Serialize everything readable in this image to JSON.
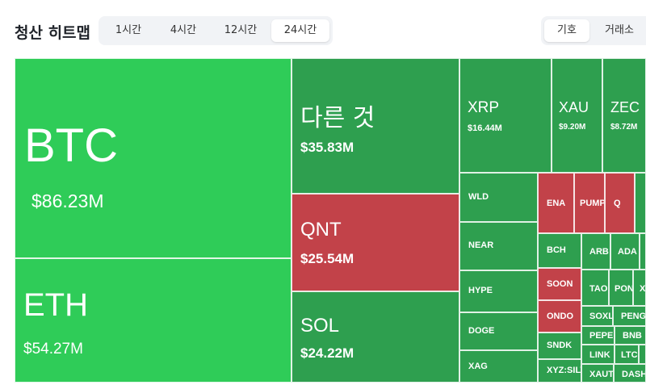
{
  "header": {
    "title": "청산 히트맵",
    "time_tabs": [
      "1시간",
      "4시간",
      "12시간",
      "24시간"
    ],
    "active_time_tab": "24시간",
    "view_tabs": [
      "기호",
      "거래소"
    ],
    "active_view_tab": "기호"
  },
  "colors": {
    "up_bright": "#2fcc58",
    "up": "#2e9f4f",
    "down": "#c24249"
  },
  "tiles": [
    {
      "symbol": "BTC",
      "value": "$86.23M",
      "color": "up_bright"
    },
    {
      "symbol": "ETH",
      "value": "$54.27M",
      "color": "up_bright"
    },
    {
      "symbol": "다른 것",
      "value": "$35.83M",
      "color": "up"
    },
    {
      "symbol": "QNT",
      "value": "$25.54M",
      "color": "down"
    },
    {
      "symbol": "SOL",
      "value": "$24.22M",
      "color": "up"
    },
    {
      "symbol": "XRP",
      "value": "$16.44M",
      "color": "up"
    },
    {
      "symbol": "XAU",
      "value": "$9.20M",
      "color": "up"
    },
    {
      "symbol": "ZEC",
      "value": "$8.72M",
      "color": "up"
    },
    {
      "symbol": "WLD",
      "color": "up"
    },
    {
      "symbol": "NEAR",
      "color": "up"
    },
    {
      "symbol": "HYPE",
      "color": "up"
    },
    {
      "symbol": "DOGE",
      "color": "up"
    },
    {
      "symbol": "XAG",
      "color": "up"
    },
    {
      "symbol": "ENA",
      "color": "down"
    },
    {
      "symbol": "PUMP",
      "color": "down"
    },
    {
      "symbol": "Q",
      "color": "down"
    },
    {
      "symbol": "BCH",
      "color": "up"
    },
    {
      "symbol": "SOON",
      "color": "down"
    },
    {
      "symbol": "ONDO",
      "color": "down"
    },
    {
      "symbol": "SNDK",
      "color": "up"
    },
    {
      "symbol": "XYZ:SILVER",
      "color": "up"
    },
    {
      "symbol": "ARB",
      "color": "up"
    },
    {
      "symbol": "ADA",
      "color": "up"
    },
    {
      "symbol": "TAO",
      "color": "up"
    },
    {
      "symbol": "PONKE",
      "color": "up"
    },
    {
      "symbol": "X",
      "color": "up"
    },
    {
      "symbol": "SOXL",
      "color": "up"
    },
    {
      "symbol": "PENGU",
      "color": "up"
    },
    {
      "symbol": "PEPE",
      "color": "up"
    },
    {
      "symbol": "BNB",
      "color": "up"
    },
    {
      "symbol": "LINK",
      "color": "up"
    },
    {
      "symbol": "LTC",
      "color": "up"
    },
    {
      "symbol": "XAUT",
      "color": "up"
    },
    {
      "symbol": "DASH",
      "color": "up"
    }
  ]
}
